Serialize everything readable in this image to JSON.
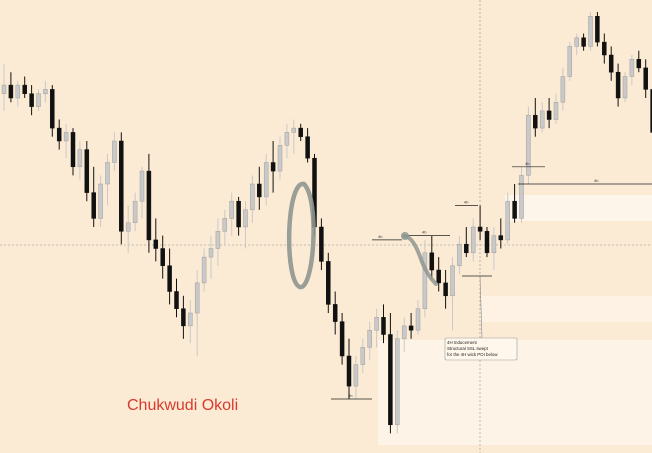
{
  "chart_data": {
    "type": "candlestick",
    "xlabel": "",
    "ylabel": "",
    "ylim": [
      0,
      100
    ],
    "grid": false,
    "legend": "none",
    "author": "Chukwudi Okoli",
    "annotation": {
      "lines": [
        "4H Inducement",
        "Structural SSL swept",
        "for the 4H wick POI below"
      ]
    },
    "level_labels": [
      "4h",
      "4h",
      "4h",
      "4h",
      "4h",
      "4h"
    ],
    "colors": {
      "background": "#fcebd4",
      "bull": "#c9c9c9",
      "bear": "#111111",
      "zone": "#ffffff",
      "marker": "#8e9690",
      "author": "#d93a2f"
    },
    "candles": [
      {
        "o": 81,
        "h": 88,
        "l": 77,
        "c": 83
      },
      {
        "o": 83,
        "h": 86,
        "l": 79,
        "c": 80
      },
      {
        "o": 80,
        "h": 84,
        "l": 78,
        "c": 83
      },
      {
        "o": 83,
        "h": 85,
        "l": 80,
        "c": 81
      },
      {
        "o": 81,
        "h": 83,
        "l": 76,
        "c": 78
      },
      {
        "o": 78,
        "h": 82,
        "l": 77,
        "c": 81
      },
      {
        "o": 81,
        "h": 84,
        "l": 79,
        "c": 82
      },
      {
        "o": 82,
        "h": 83,
        "l": 71,
        "c": 73
      },
      {
        "o": 73,
        "h": 75,
        "l": 68,
        "c": 70
      },
      {
        "o": 70,
        "h": 74,
        "l": 66,
        "c": 72
      },
      {
        "o": 72,
        "h": 73,
        "l": 62,
        "c": 64
      },
      {
        "o": 64,
        "h": 70,
        "l": 61,
        "c": 68
      },
      {
        "o": 68,
        "h": 70,
        "l": 56,
        "c": 58
      },
      {
        "o": 58,
        "h": 64,
        "l": 50,
        "c": 52
      },
      {
        "o": 52,
        "h": 62,
        "l": 50,
        "c": 60
      },
      {
        "o": 60,
        "h": 67,
        "l": 55,
        "c": 65
      },
      {
        "o": 65,
        "h": 72,
        "l": 63,
        "c": 70
      },
      {
        "o": 70,
        "h": 72,
        "l": 46,
        "c": 49
      },
      {
        "o": 49,
        "h": 55,
        "l": 44,
        "c": 51
      },
      {
        "o": 51,
        "h": 58,
        "l": 49,
        "c": 56
      },
      {
        "o": 56,
        "h": 64,
        "l": 52,
        "c": 63
      },
      {
        "o": 63,
        "h": 67,
        "l": 44,
        "c": 47
      },
      {
        "o": 47,
        "h": 52,
        "l": 42,
        "c": 45
      },
      {
        "o": 45,
        "h": 48,
        "l": 38,
        "c": 41
      },
      {
        "o": 41,
        "h": 45,
        "l": 32,
        "c": 35
      },
      {
        "o": 35,
        "h": 38,
        "l": 29,
        "c": 31
      },
      {
        "o": 31,
        "h": 34,
        "l": 24,
        "c": 27
      },
      {
        "o": 27,
        "h": 33,
        "l": 23,
        "c": 30
      },
      {
        "o": 30,
        "h": 40,
        "l": 20,
        "c": 37
      },
      {
        "o": 37,
        "h": 45,
        "l": 35,
        "c": 43
      },
      {
        "o": 43,
        "h": 48,
        "l": 38,
        "c": 45
      },
      {
        "o": 45,
        "h": 52,
        "l": 41,
        "c": 49
      },
      {
        "o": 49,
        "h": 54,
        "l": 46,
        "c": 52
      },
      {
        "o": 52,
        "h": 58,
        "l": 48,
        "c": 56
      },
      {
        "o": 56,
        "h": 57,
        "l": 48,
        "c": 50
      },
      {
        "o": 50,
        "h": 56,
        "l": 45,
        "c": 54
      },
      {
        "o": 54,
        "h": 62,
        "l": 51,
        "c": 60
      },
      {
        "o": 60,
        "h": 64,
        "l": 54,
        "c": 57
      },
      {
        "o": 57,
        "h": 67,
        "l": 55,
        "c": 65
      },
      {
        "o": 65,
        "h": 70,
        "l": 58,
        "c": 63
      },
      {
        "o": 63,
        "h": 71,
        "l": 61,
        "c": 69
      },
      {
        "o": 69,
        "h": 74,
        "l": 66,
        "c": 72
      },
      {
        "o": 72,
        "h": 75,
        "l": 67,
        "c": 73
      },
      {
        "o": 73,
        "h": 74,
        "l": 70,
        "c": 71
      },
      {
        "o": 71,
        "h": 73,
        "l": 65,
        "c": 66
      },
      {
        "o": 66,
        "h": 67,
        "l": 48,
        "c": 50
      },
      {
        "o": 50,
        "h": 52,
        "l": 40,
        "c": 42
      },
      {
        "o": 42,
        "h": 44,
        "l": 30,
        "c": 32
      },
      {
        "o": 32,
        "h": 35,
        "l": 25,
        "c": 28
      },
      {
        "o": 28,
        "h": 30,
        "l": 18,
        "c": 20
      },
      {
        "o": 20,
        "h": 24,
        "l": 10,
        "c": 13
      },
      {
        "o": 13,
        "h": 20,
        "l": 10,
        "c": 18
      },
      {
        "o": 18,
        "h": 24,
        "l": 16,
        "c": 22
      },
      {
        "o": 22,
        "h": 28,
        "l": 19,
        "c": 26
      },
      {
        "o": 26,
        "h": 31,
        "l": 22,
        "c": 29
      },
      {
        "o": 29,
        "h": 32,
        "l": 23,
        "c": 25
      },
      {
        "o": 25,
        "h": 30,
        "l": 2,
        "c": 4
      },
      {
        "o": 4,
        "h": 26,
        "l": 2,
        "c": 24
      },
      {
        "o": 24,
        "h": 29,
        "l": 21,
        "c": 27
      },
      {
        "o": 27,
        "h": 30,
        "l": 24,
        "c": 26
      },
      {
        "o": 26,
        "h": 33,
        "l": 25,
        "c": 31
      },
      {
        "o": 31,
        "h": 47,
        "l": 29,
        "c": 44
      },
      {
        "o": 44,
        "h": 48,
        "l": 38,
        "c": 40
      },
      {
        "o": 40,
        "h": 43,
        "l": 35,
        "c": 37
      },
      {
        "o": 37,
        "h": 40,
        "l": 31,
        "c": 34
      },
      {
        "o": 34,
        "h": 43,
        "l": 26,
        "c": 41
      },
      {
        "o": 41,
        "h": 48,
        "l": 39,
        "c": 46
      },
      {
        "o": 46,
        "h": 50,
        "l": 43,
        "c": 44
      },
      {
        "o": 44,
        "h": 52,
        "l": 42,
        "c": 50
      },
      {
        "o": 50,
        "h": 55,
        "l": 47,
        "c": 49
      },
      {
        "o": 49,
        "h": 50,
        "l": 43,
        "c": 44
      },
      {
        "o": 44,
        "h": 50,
        "l": 40,
        "c": 48
      },
      {
        "o": 48,
        "h": 52,
        "l": 45,
        "c": 47
      },
      {
        "o": 47,
        "h": 58,
        "l": 46,
        "c": 56
      },
      {
        "o": 56,
        "h": 60,
        "l": 51,
        "c": 52
      },
      {
        "o": 52,
        "h": 64,
        "l": 51,
        "c": 62
      },
      {
        "o": 62,
        "h": 78,
        "l": 60,
        "c": 76
      },
      {
        "o": 76,
        "h": 80,
        "l": 71,
        "c": 73
      },
      {
        "o": 73,
        "h": 79,
        "l": 72,
        "c": 77
      },
      {
        "o": 77,
        "h": 80,
        "l": 73,
        "c": 75
      },
      {
        "o": 75,
        "h": 81,
        "l": 74,
        "c": 79
      },
      {
        "o": 79,
        "h": 87,
        "l": 77,
        "c": 85
      },
      {
        "o": 85,
        "h": 93,
        "l": 84,
        "c": 92
      },
      {
        "o": 92,
        "h": 95,
        "l": 90,
        "c": 94
      },
      {
        "o": 94,
        "h": 95,
        "l": 91,
        "c": 92
      },
      {
        "o": 92,
        "h": 100,
        "l": 91,
        "c": 99
      },
      {
        "o": 99,
        "h": 100,
        "l": 92,
        "c": 93
      },
      {
        "o": 93,
        "h": 95,
        "l": 88,
        "c": 90
      },
      {
        "o": 90,
        "h": 92,
        "l": 84,
        "c": 86
      },
      {
        "o": 86,
        "h": 88,
        "l": 78,
        "c": 80
      },
      {
        "o": 80,
        "h": 86,
        "l": 79,
        "c": 85
      },
      {
        "o": 85,
        "h": 90,
        "l": 83,
        "c": 89
      },
      {
        "o": 89,
        "h": 91,
        "l": 86,
        "c": 87
      },
      {
        "o": 87,
        "h": 89,
        "l": 80,
        "c": 82
      },
      {
        "o": 82,
        "h": 83,
        "l": 70,
        "c": 72
      }
    ]
  }
}
